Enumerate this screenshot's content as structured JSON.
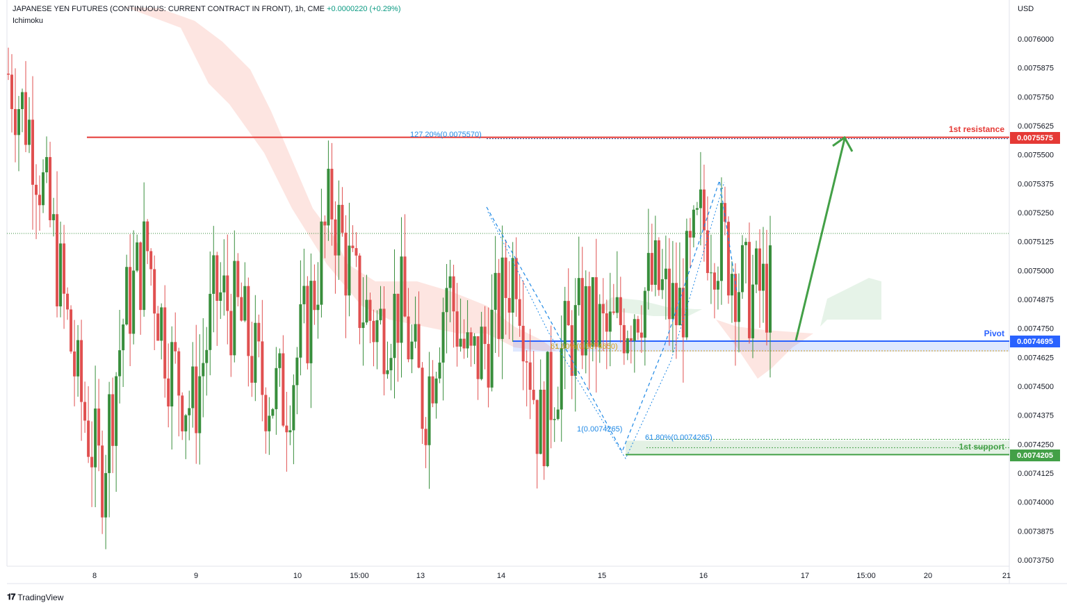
{
  "header": {
    "symbol": "JAPANESE YEN FUTURES (CONTINUOUS: CURRENT CONTRACT IN FRONT), 1h, CME",
    "change": "+0.0000220 (+0.29%)",
    "indicator": "Ichimoku"
  },
  "currency_label": "USD",
  "brand": "TradingView",
  "colors": {
    "up": "#388e3c",
    "down": "#e05050",
    "resistance": "#e53935",
    "pivot": "#2962ff",
    "support": "#43a047",
    "fib": "#1e88e5",
    "cloud_bear": "#fde0dc",
    "cloud_bull": "#e3f2e5"
  },
  "price_axis": {
    "ticks": [
      "0.0076000",
      "0.0075875",
      "0.0075750",
      "0.0075625",
      "0.0075500",
      "0.0075375",
      "0.0075250",
      "0.0075125",
      "0.0075000",
      "0.0074875",
      "0.0074750",
      "0.0074625",
      "0.0074500",
      "0.0074375",
      "0.0074250",
      "0.0074125",
      "0.0074000",
      "0.0073875",
      "0.0073750"
    ]
  },
  "time_axis": {
    "labels": [
      "8",
      "9",
      "10",
      "15:00",
      "13",
      "14",
      "15",
      "16",
      "17",
      "15:00",
      "20",
      "21"
    ]
  },
  "levels": {
    "resistance": {
      "label": "1st resistance",
      "value": "0.0075575"
    },
    "pivot": {
      "label": "Pivot",
      "value": "0.0074695"
    },
    "support": {
      "label": "1st support",
      "value": "0.0074205"
    }
  },
  "fib_labels": {
    "ext_127": "127.20%(0.0075570)",
    "ret_61_mid": "61.80%(0.0074650)",
    "one": "1(0.0074265)",
    "ret_61_low": "61.80%(0.0074265)"
  },
  "chart_data": {
    "type": "candlestick",
    "title": "JAPANESE YEN FUTURES (CONTINUOUS: CURRENT CONTRACT IN FRONT), 1h, CME",
    "ylabel": "USD",
    "ylim": [
      0.007372,
      0.007613
    ],
    "x_ticks": [
      "8",
      "9",
      "10",
      "15:00",
      "13",
      "14",
      "15",
      "16",
      "17",
      "15:00",
      "20",
      "21"
    ],
    "close_path": [
      0.007585,
      0.00756,
      0.00751,
      0.00745,
      0.00741,
      0.00748,
      0.00751,
      0.00746,
      0.00744,
      0.00749,
      0.00748,
      0.00745,
      0.007445,
      0.00748,
      0.00753,
      0.00749,
      0.007475,
      0.007485,
      0.00744,
      0.007495,
      0.0074565,
      0.007475,
      0.007506,
      0.00743,
      0.007465,
      0.00748,
      0.00747,
      0.007485,
      0.007495,
      0.00748,
      0.00752,
      0.00751,
      0.00749,
      0.0074915
    ],
    "levels": {
      "resistance": 0.0075575,
      "pivot": 0.0074695,
      "support": 0.0074205
    },
    "annotations": [
      "1st resistance",
      "Pivot",
      "1st support"
    ]
  }
}
